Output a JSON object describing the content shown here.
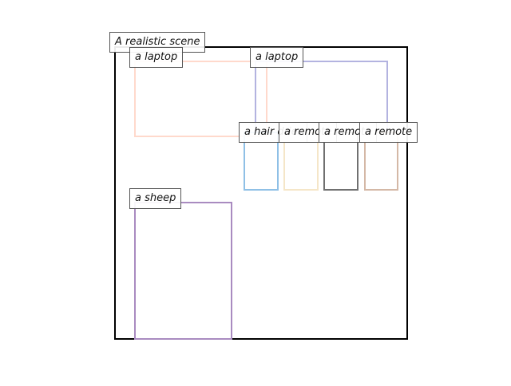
{
  "scene": {
    "title": "A realistic scene"
  },
  "objects": [
    {
      "label": "a laptop",
      "color": "#ffd9cc"
    },
    {
      "label": "a laptop",
      "color": "#b3b3e0"
    },
    {
      "label": "a hair drier",
      "color": "#8fc0e6"
    },
    {
      "label": "a remote",
      "color": "#f5e6c8"
    },
    {
      "label": "a remote",
      "color": "#707070"
    },
    {
      "label": "a remote",
      "color": "#d4b8a6"
    },
    {
      "label": "a sheep",
      "color": "#a98bc0"
    }
  ]
}
